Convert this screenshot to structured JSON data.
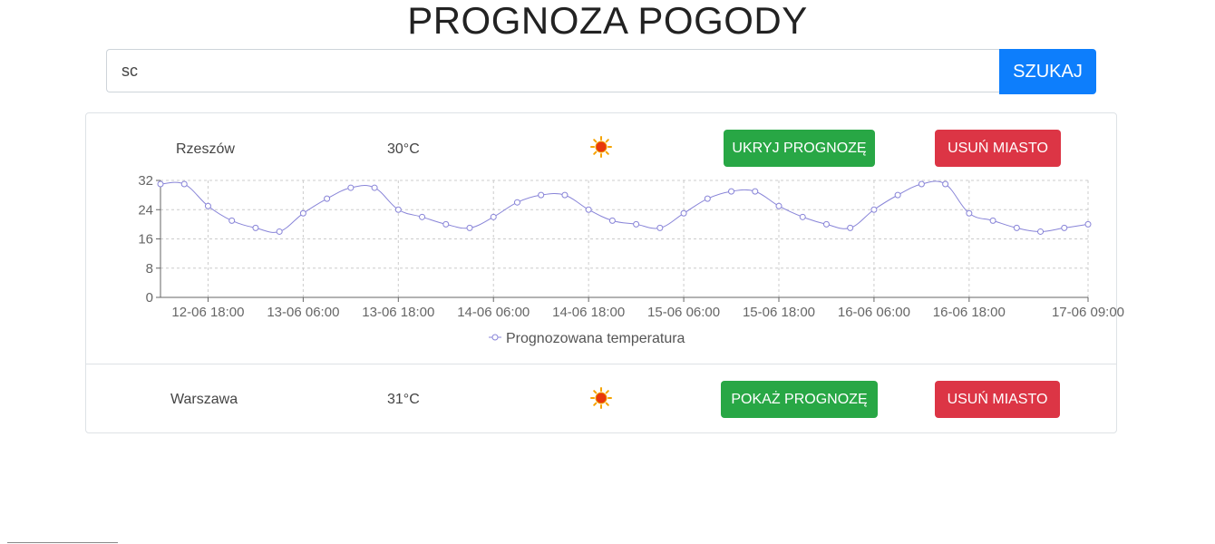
{
  "page": {
    "title": "PROGNOZA POGODY"
  },
  "search": {
    "value": "sc",
    "button_label": "SZUKAJ"
  },
  "cities": [
    {
      "name": "Rzeszów",
      "temperature": "30°C",
      "weather_icon": "sun-icon",
      "toggle_label": "UKRYJ PROGNOZĘ",
      "remove_label": "USUŃ MIASTO"
    },
    {
      "name": "Warszawa",
      "temperature": "31°C",
      "weather_icon": "sun-icon",
      "toggle_label": "POKAŻ PROGNOZĘ",
      "remove_label": "USUŃ MIASTO"
    }
  ],
  "colors": {
    "accent_blue": "#0d7efc",
    "show_hide_green": "#28a745",
    "remove_red": "#dc3545",
    "series_line": "#8884d8"
  },
  "chart_data": {
    "type": "line",
    "title": "",
    "xlabel": "",
    "ylabel": "",
    "ylim": [
      0,
      32
    ],
    "yticks": [
      "0",
      "8",
      "16",
      "24",
      "32"
    ],
    "xticks": [
      "12-06 18:00",
      "13-06 06:00",
      "13-06 18:00",
      "14-06 06:00",
      "14-06 18:00",
      "15-06 06:00",
      "15-06 18:00",
      "16-06 06:00",
      "16-06 18:00",
      "17-06 09:00"
    ],
    "grid": true,
    "legend": "bottom-center",
    "series": [
      {
        "name": "Prognozowana temperatura",
        "x": [
          "12-06 12:00",
          "12-06 15:00",
          "12-06 18:00",
          "12-06 21:00",
          "13-06 00:00",
          "13-06 03:00",
          "13-06 06:00",
          "13-06 09:00",
          "13-06 12:00",
          "13-06 15:00",
          "13-06 18:00",
          "13-06 21:00",
          "14-06 00:00",
          "14-06 03:00",
          "14-06 06:00",
          "14-06 09:00",
          "14-06 12:00",
          "14-06 15:00",
          "14-06 18:00",
          "14-06 21:00",
          "15-06 00:00",
          "15-06 03:00",
          "15-06 06:00",
          "15-06 09:00",
          "15-06 12:00",
          "15-06 15:00",
          "15-06 18:00",
          "15-06 21:00",
          "16-06 00:00",
          "16-06 03:00",
          "16-06 06:00",
          "16-06 09:00",
          "16-06 12:00",
          "16-06 15:00",
          "16-06 18:00",
          "16-06 21:00",
          "17-06 00:00",
          "17-06 03:00",
          "17-06 06:00",
          "17-06 09:00"
        ],
        "values": [
          31,
          31,
          25,
          21,
          19,
          18,
          23,
          27,
          30,
          30,
          24,
          22,
          20,
          19,
          22,
          26,
          28,
          28,
          24,
          21,
          20,
          19,
          23,
          27,
          29,
          29,
          25,
          22,
          20,
          19,
          24,
          28,
          31,
          31,
          23,
          21,
          19,
          18,
          19,
          20
        ]
      }
    ]
  }
}
